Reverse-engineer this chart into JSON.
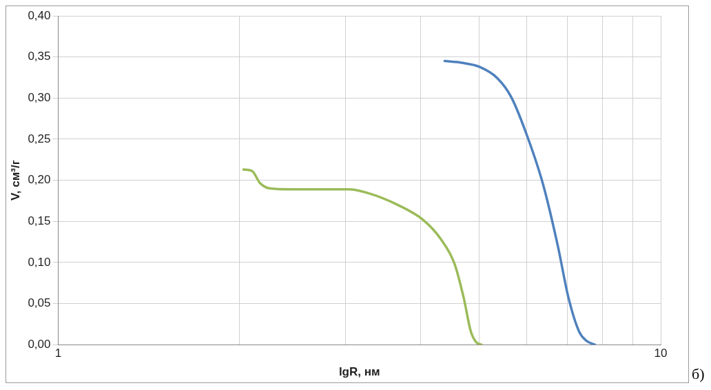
{
  "chart_data": {
    "type": "line",
    "xlabel": "lgR, нм",
    "ylabel": "V, см³/г",
    "log": "x",
    "xlim": [
      1,
      10
    ],
    "xticks": [
      1,
      {
        "value": 2,
        "label": null
      },
      {
        "value": 3,
        "label": null
      },
      {
        "value": 4,
        "label": null
      },
      {
        "value": 5,
        "label": null
      },
      {
        "value": 6,
        "label": null
      },
      {
        "value": 7,
        "label": null
      },
      {
        "value": 8,
        "label": null
      },
      {
        "value": 9,
        "label": null
      },
      10
    ],
    "ylim": [
      0,
      0.4
    ],
    "yticks": [
      {
        "value": 0,
        "label": "0,00"
      },
      {
        "value": 0.05,
        "label": "0,05"
      },
      {
        "value": 0.1,
        "label": "0,10"
      },
      {
        "value": 0.15,
        "label": "0,15"
      },
      {
        "value": 0.2,
        "label": "0,20"
      },
      {
        "value": 0.25,
        "label": "0,25"
      },
      {
        "value": 0.3,
        "label": "0,30"
      },
      {
        "value": 0.35,
        "label": "0,35"
      },
      {
        "value": 0.4,
        "label": "0,40"
      }
    ],
    "grid": true,
    "legend": false,
    "marker": "none",
    "line_style": "solid",
    "annotations": [
      "б)"
    ],
    "series": [
      {
        "color": "#4f81bd",
        "x": [
          4.38,
          4.67,
          5.0,
          5.36,
          5.65,
          6.05,
          6.39,
          6.75,
          7.03,
          7.32,
          7.52,
          7.77
        ],
        "values": [
          0.345,
          0.343,
          0.338,
          0.324,
          0.301,
          0.247,
          0.193,
          0.12,
          0.057,
          0.016,
          0.005,
          0
        ]
      },
      {
        "color": "#9bbb59",
        "x": [
          2.03,
          2.1,
          2.16,
          2.25,
          2.44,
          3.03,
          3.28,
          3.66,
          4.03,
          4.31,
          4.55,
          4.71,
          4.84,
          4.94,
          5.04
        ],
        "values": [
          0.213,
          0.211,
          0.197,
          0.19,
          0.189,
          0.189,
          0.184,
          0.17,
          0.152,
          0.129,
          0.098,
          0.057,
          0.016,
          0.003,
          0
        ]
      }
    ]
  }
}
